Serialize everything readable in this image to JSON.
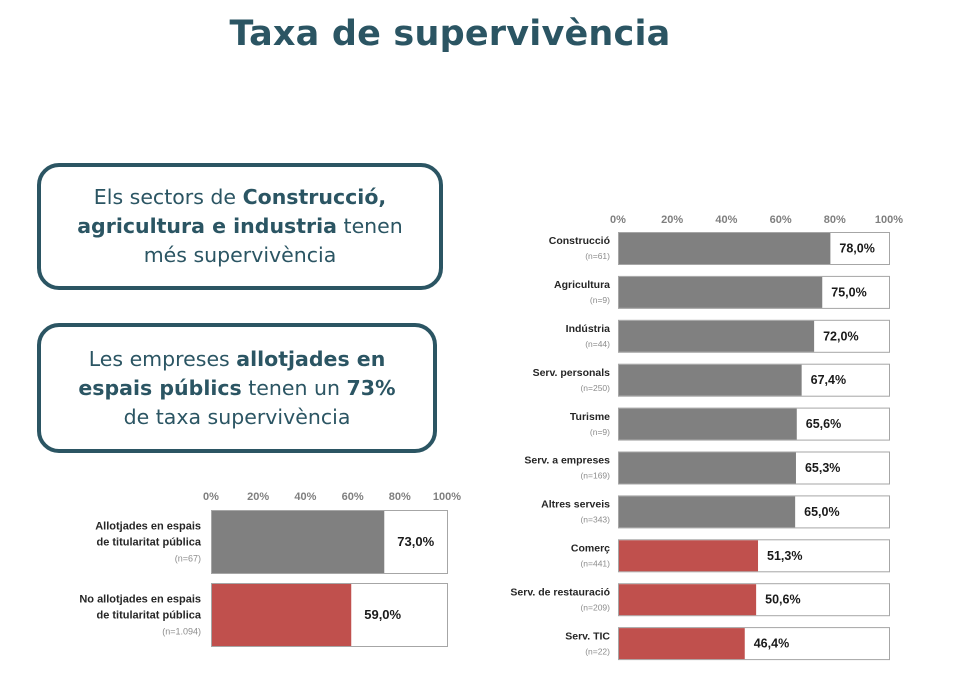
{
  "title": "Taxa de supervivència",
  "callouts": [
    {
      "parts": [
        {
          "text": "Els sectors de ",
          "bold": false
        },
        {
          "text": "Construcció, agricultura e industria",
          "bold": true
        },
        {
          "text": " tenen més supervivència",
          "bold": false
        }
      ]
    },
    {
      "parts": [
        {
          "text": "Les empreses ",
          "bold": false
        },
        {
          "text": "allotjades en espais públics",
          "bold": true
        },
        {
          "text": " tenen un ",
          "bold": false
        },
        {
          "text": "73%",
          "bold": true
        },
        {
          "text": " de taxa supervivència",
          "bold": false
        }
      ]
    }
  ],
  "colors": {
    "gray": "#808080",
    "red": "#c0504d",
    "title": "#2b5563"
  },
  "chart_data": [
    {
      "type": "bar",
      "orientation": "horizontal",
      "xlim": [
        0,
        100
      ],
      "ticks": [
        "0%",
        "20%",
        "40%",
        "60%",
        "80%",
        "100%"
      ],
      "categories": [
        {
          "label": [
            "Allotjades en espais",
            "de titularitat pública"
          ],
          "n": "(n=67)",
          "value": 73.0,
          "display": "73,0%",
          "color": "gray"
        },
        {
          "label": [
            "No allotjades en espais",
            "de titularitat pública"
          ],
          "n": "(n=1.094)",
          "value": 59.0,
          "display": "59,0%",
          "color": "red"
        }
      ]
    },
    {
      "type": "bar",
      "orientation": "horizontal",
      "xlim": [
        0,
        100
      ],
      "ticks": [
        "0%",
        "20%",
        "40%",
        "60%",
        "80%",
        "100%"
      ],
      "categories": [
        {
          "label": [
            "Construcció"
          ],
          "n": "(n=61)",
          "value": 78.0,
          "display": "78,0%",
          "color": "gray"
        },
        {
          "label": [
            "Agricultura"
          ],
          "n": "(n=9)",
          "value": 75.0,
          "display": "75,0%",
          "color": "gray"
        },
        {
          "label": [
            "Indústria"
          ],
          "n": "(n=44)",
          "value": 72.0,
          "display": "72,0%",
          "color": "gray"
        },
        {
          "label": [
            "Serv. personals"
          ],
          "n": "(n=250)",
          "value": 67.4,
          "display": "67,4%",
          "color": "gray"
        },
        {
          "label": [
            "Turisme"
          ],
          "n": "(n=9)",
          "value": 65.6,
          "display": "65,6%",
          "color": "gray"
        },
        {
          "label": [
            "Serv. a empreses"
          ],
          "n": "(n=169)",
          "value": 65.3,
          "display": "65,3%",
          "color": "gray"
        },
        {
          "label": [
            "Altres serveis"
          ],
          "n": "(n=343)",
          "value": 65.0,
          "display": "65,0%",
          "color": "gray"
        },
        {
          "label": [
            "Comerç"
          ],
          "n": "(n=441)",
          "value": 51.3,
          "display": "51,3%",
          "color": "red"
        },
        {
          "label": [
            "Serv. de restauració"
          ],
          "n": "(n=209)",
          "value": 50.6,
          "display": "50,6%",
          "color": "red"
        },
        {
          "label": [
            "Serv. TIC"
          ],
          "n": "(n=22)",
          "value": 46.4,
          "display": "46,4%",
          "color": "red"
        }
      ]
    }
  ]
}
